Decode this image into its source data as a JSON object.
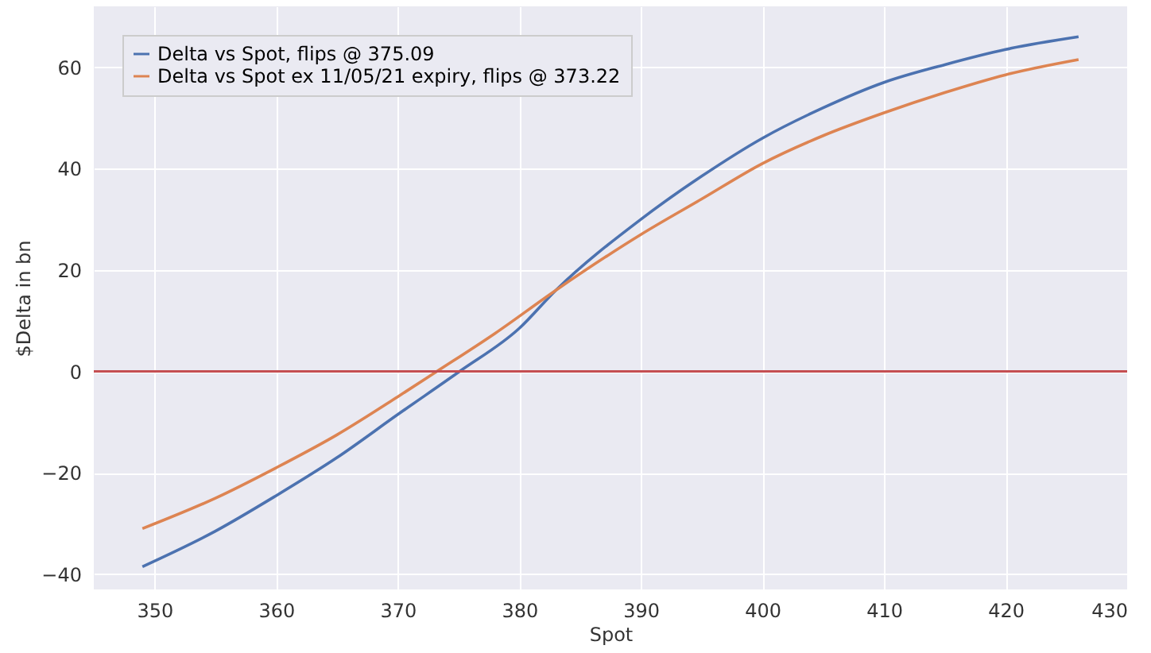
{
  "chart_data": {
    "type": "line",
    "xlabel": "Spot",
    "ylabel": "$Delta in bn",
    "series": [
      {
        "name": "Delta vs Spot, flips @ 375.09",
        "color": "#4c72b0",
        "x": [
          349,
          355,
          360,
          365,
          370,
          375.09,
          380,
          383,
          390,
          395,
          400,
          405,
          410,
          415,
          420,
          426
        ],
        "values": [
          -38.5,
          -31.5,
          -24.5,
          -17,
          -8.5,
          0,
          8.5,
          16,
          30,
          38.5,
          46,
          52,
          57,
          60.5,
          63.5,
          66
        ]
      },
      {
        "name": "Delta vs Spot ex 11/05/21 expiry, flips @ 373.22",
        "color": "#dd8452",
        "x": [
          349,
          355,
          360,
          365,
          370,
          373.22,
          378,
          383,
          390,
          395,
          400,
          405,
          410,
          415,
          420,
          426
        ],
        "values": [
          -31,
          -25,
          -19,
          -12.5,
          -5,
          0,
          7.5,
          16,
          27,
          34,
          41,
          46.5,
          51,
          55,
          58.5,
          61.5
        ]
      }
    ],
    "xlim": [
      345,
      430
    ],
    "xticks": [
      350,
      360,
      370,
      380,
      390,
      400,
      410,
      420,
      430
    ],
    "ylim": [
      -43,
      72
    ],
    "yticks": [
      -40,
      -20,
      0,
      20,
      40,
      60
    ],
    "ref_lines": [
      {
        "axis": "y",
        "value": 0,
        "color": "#c44e52"
      }
    ],
    "grid": true,
    "legend": "top left",
    "marker": "none",
    "line_style": "solid"
  }
}
